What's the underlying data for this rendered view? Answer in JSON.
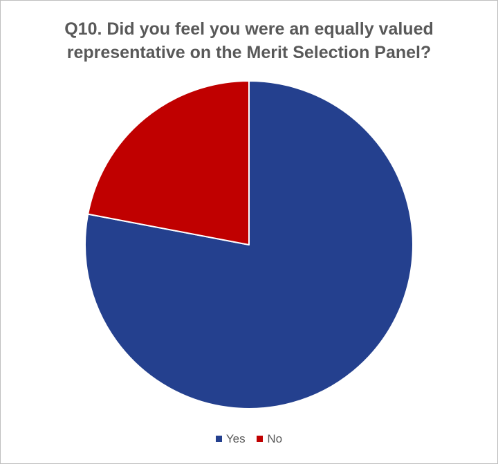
{
  "chart_data": {
    "type": "pie",
    "title_lines": [
      "Q10. Did you feel you were an equally valued",
      "representative on the Merit Selection Panel?"
    ],
    "categories": [
      "Yes",
      "No"
    ],
    "values": [
      78,
      22
    ],
    "colors": [
      "#24408e",
      "#c00000"
    ],
    "slice_border_color": "#ffffff",
    "legend_position": "bottom"
  }
}
